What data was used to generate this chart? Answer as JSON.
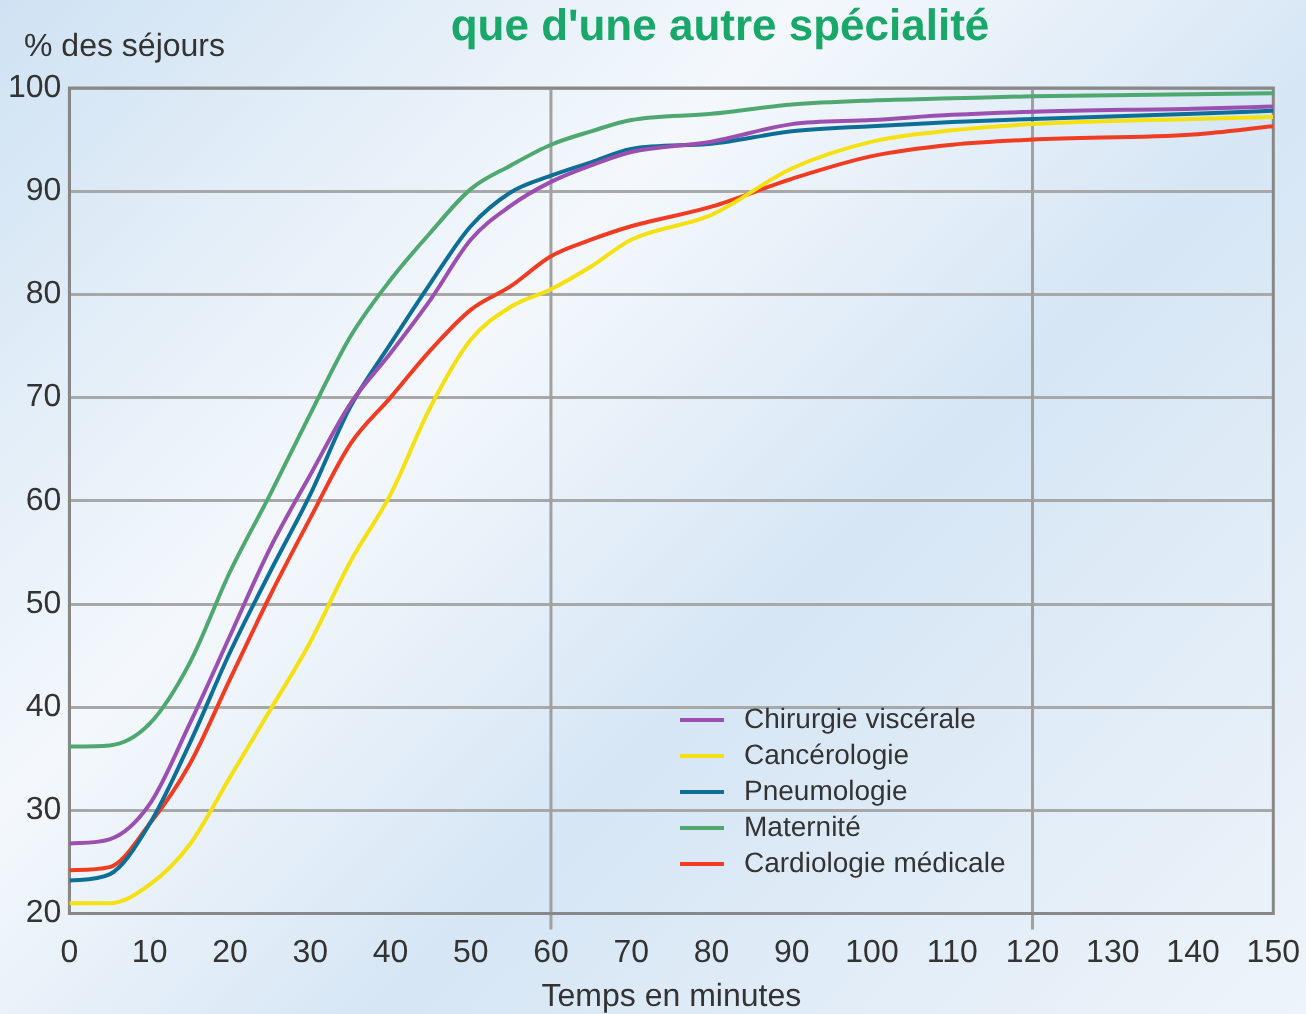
{
  "chart_data": {
    "type": "line",
    "title": "que d'une autre spécialité",
    "xlabel": "Temps en minutes",
    "ylabel": "% des séjours",
    "x": [
      0,
      5,
      10,
      15,
      20,
      25,
      30,
      35,
      40,
      45,
      50,
      55,
      60,
      65,
      70,
      80,
      90,
      100,
      110,
      120,
      140,
      150
    ],
    "series": [
      {
        "name": "Chirurgie viscérale",
        "color": "#9b4fb0",
        "values": [
          26.8,
          27.2,
          30.6,
          38.4,
          46.9,
          55.4,
          62.5,
          69.4,
          74.3,
          79.5,
          85.3,
          88.6,
          90.9,
          92.5,
          93.8,
          94.8,
          96.5,
          96.9,
          97.4,
          97.7,
          98.0,
          98.2
        ]
      },
      {
        "name": "Cancérologie",
        "color": "#f5e010",
        "values": [
          21,
          21,
          22.8,
          26.7,
          33.2,
          39.7,
          46.3,
          54.1,
          60.6,
          69.1,
          75.6,
          78.8,
          80.5,
          82.7,
          85.3,
          87.7,
          92.2,
          94.8,
          95.9,
          96.5,
          97.0,
          97.2
        ]
      },
      {
        "name": "Pneumologie",
        "color": "#0e6f96",
        "values": [
          23.2,
          23.8,
          28.7,
          36.5,
          45.3,
          53.1,
          60.6,
          69.1,
          75.2,
          81.1,
          86.6,
          89.9,
          91.5,
          92.8,
          94.1,
          94.6,
          95.8,
          96.3,
          96.7,
          97.0,
          97.5,
          97.8
        ]
      },
      {
        "name": "Maternité",
        "color": "#4fa870",
        "values": [
          36.2,
          36.3,
          38.4,
          44.3,
          53.1,
          60.6,
          68.4,
          75.9,
          81.4,
          86.0,
          90.2,
          92.5,
          94.5,
          95.8,
          96.9,
          97.5,
          98.4,
          98.8,
          99.0,
          99.2,
          99.4,
          99.5
        ]
      },
      {
        "name": "Cardiologie médicale",
        "color": "#f03c22",
        "values": [
          24.2,
          24.5,
          28.7,
          34.5,
          42.7,
          50.8,
          58.3,
          65.5,
          70.0,
          74.6,
          78.5,
          80.8,
          83.7,
          85.3,
          86.6,
          88.5,
          91.2,
          93.4,
          94.5,
          95.0,
          95.5,
          96.3
        ]
      }
    ],
    "xlim": [
      0,
      150
    ],
    "xticks": [
      0,
      10,
      20,
      30,
      40,
      50,
      60,
      70,
      80,
      90,
      100,
      110,
      120,
      130,
      140,
      150
    ],
    "ylim": [
      20,
      100
    ],
    "yticks": [
      20,
      30,
      40,
      50,
      60,
      70,
      80,
      90,
      100
    ],
    "grid": "y",
    "ref_lines": [
      {
        "axis": "x",
        "value": 60
      },
      {
        "axis": "x",
        "value": 120
      }
    ],
    "legend": "bottom right",
    "marker": "none",
    "line_style": "solid"
  }
}
